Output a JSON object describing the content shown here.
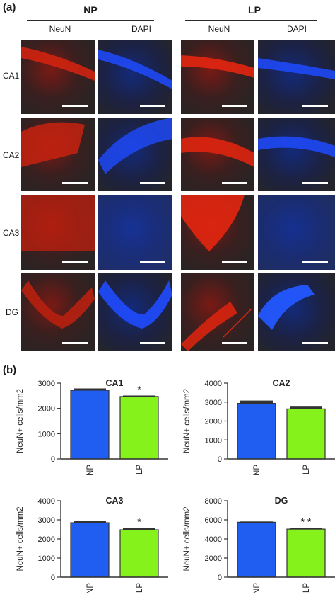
{
  "panel_a": {
    "label": "(a)",
    "groups": [
      {
        "title": "NP",
        "columns": [
          "NeuN",
          "DAPI"
        ]
      },
      {
        "title": "LP",
        "columns": [
          "NeuN",
          "DAPI"
        ]
      }
    ],
    "rows": [
      "CA1",
      "CA2",
      "CA3",
      "DG"
    ]
  },
  "panel_b": {
    "label": "(b)"
  },
  "colors": {
    "np_bar": "#1f5ef0",
    "lp_bar": "#86f21c",
    "neun_signal": "#e0240f",
    "dapi_signal": "#1a4dff"
  },
  "chart_data": [
    {
      "type": "bar",
      "title": "CA1",
      "categories": [
        "NP",
        "LP"
      ],
      "values": [
        2720,
        2470
      ],
      "errors": [
        70,
        40
      ],
      "ylabel": "NeuN+ cells/mm2",
      "ylim": [
        0,
        3000
      ],
      "yticks": [
        0,
        1000,
        2000,
        3000
      ],
      "significance": [
        "",
        "*"
      ]
    },
    {
      "type": "bar",
      "title": "CA2",
      "categories": [
        "NP",
        "LP"
      ],
      "values": [
        2930,
        2640
      ],
      "errors": [
        150,
        120
      ],
      "ylabel": "NeuN+ cells/mm2",
      "ylim": [
        0,
        4000
      ],
      "yticks": [
        0,
        1000,
        2000,
        3000,
        4000
      ],
      "significance": [
        "",
        ""
      ]
    },
    {
      "type": "bar",
      "title": "CA3",
      "categories": [
        "NP",
        "LP"
      ],
      "values": [
        2850,
        2480
      ],
      "errors": [
        100,
        90
      ],
      "ylabel": "NeuN+ cells/mm2",
      "ylim": [
        0,
        4000
      ],
      "yticks": [
        0,
        1000,
        2000,
        3000,
        4000
      ],
      "significance": [
        "",
        "*"
      ]
    },
    {
      "type": "bar",
      "title": "DG",
      "categories": [
        "NP",
        "LP"
      ],
      "values": [
        5750,
        5030
      ],
      "errors": [
        80,
        120
      ],
      "ylabel": "NeuN+ cells/mm2",
      "ylim": [
        0,
        8000
      ],
      "yticks": [
        0,
        2000,
        4000,
        6000,
        8000
      ],
      "significance": [
        "",
        "* *"
      ]
    }
  ]
}
